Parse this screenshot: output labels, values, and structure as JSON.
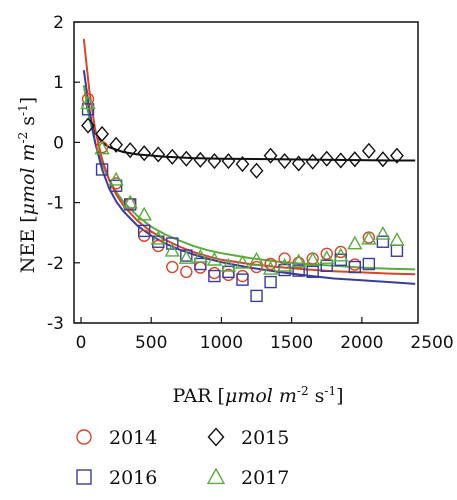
{
  "chart_data": {
    "type": "scatter",
    "title": "",
    "xlabel": {
      "main": "PAR [",
      "unit": "μmol m",
      "exp": "-2",
      "tail": " s",
      "exp2": "-1",
      "close": "]"
    },
    "ylabel": {
      "main": "NEE [",
      "unit": "μmol m",
      "exp": "-2",
      "tail": " s",
      "exp2": "-1",
      "close": "]"
    },
    "xlim": [
      -50,
      2400
    ],
    "ylim": [
      -3,
      2
    ],
    "x_ticks": [
      0,
      500,
      1000,
      1500,
      2000,
      2500
    ],
    "y_ticks": [
      -3,
      -2,
      -1,
      0,
      1,
      2
    ],
    "grid": false,
    "legend_position": "bottom",
    "colors": {
      "2014": "#d9442c",
      "2015": "#111111",
      "2016": "#3b3b9c",
      "2017": "#5aaa3c"
    },
    "series": [
      {
        "name": "2014",
        "marker": "circle",
        "points": [
          [
            50,
            0.72
          ],
          [
            150,
            -0.08
          ],
          [
            250,
            -0.68
          ],
          [
            350,
            -1.02
          ],
          [
            450,
            -1.55
          ],
          [
            550,
            -1.72
          ],
          [
            650,
            -2.07
          ],
          [
            750,
            -2.15
          ],
          [
            850,
            -2.08
          ],
          [
            950,
            -2.17
          ],
          [
            1050,
            -2.2
          ],
          [
            1150,
            -2.22
          ],
          [
            1250,
            -2.07
          ],
          [
            1350,
            -2.02
          ],
          [
            1450,
            -1.93
          ],
          [
            1550,
            -2.0
          ],
          [
            1650,
            -1.93
          ],
          [
            1750,
            -1.85
          ],
          [
            1850,
            -1.82
          ],
          [
            1950,
            -2.03
          ],
          [
            2050,
            -1.58
          ]
        ],
        "fit": [
          [
            20,
            1.72
          ],
          [
            60,
            0.85
          ],
          [
            100,
            0.22
          ],
          [
            150,
            -0.28
          ],
          [
            200,
            -0.62
          ],
          [
            250,
            -0.86
          ],
          [
            300,
            -1.04
          ],
          [
            400,
            -1.3
          ],
          [
            500,
            -1.48
          ],
          [
            600,
            -1.62
          ],
          [
            700,
            -1.73
          ],
          [
            800,
            -1.82
          ],
          [
            900,
            -1.89
          ],
          [
            1000,
            -1.95
          ],
          [
            1200,
            -2.02
          ],
          [
            1400,
            -2.07
          ],
          [
            1600,
            -2.11
          ],
          [
            1800,
            -2.14
          ],
          [
            2000,
            -2.16
          ],
          [
            2200,
            -2.18
          ],
          [
            2380,
            -2.19
          ]
        ]
      },
      {
        "name": "2015",
        "marker": "diamond",
        "points": [
          [
            50,
            0.28
          ],
          [
            150,
            0.14
          ],
          [
            250,
            -0.04
          ],
          [
            350,
            -0.13
          ],
          [
            450,
            -0.18
          ],
          [
            550,
            -0.2
          ],
          [
            650,
            -0.24
          ],
          [
            750,
            -0.27
          ],
          [
            850,
            -0.29
          ],
          [
            950,
            -0.31
          ],
          [
            1050,
            -0.31
          ],
          [
            1150,
            -0.36
          ],
          [
            1250,
            -0.47
          ],
          [
            1350,
            -0.22
          ],
          [
            1450,
            -0.31
          ],
          [
            1550,
            -0.35
          ],
          [
            1650,
            -0.32
          ],
          [
            1750,
            -0.27
          ],
          [
            1850,
            -0.3
          ],
          [
            1950,
            -0.28
          ],
          [
            2050,
            -0.14
          ],
          [
            2150,
            -0.28
          ],
          [
            2250,
            -0.22
          ]
        ],
        "fit": [
          [
            40,
            0.62
          ],
          [
            70,
            0.34
          ],
          [
            100,
            0.16
          ],
          [
            150,
            0.0
          ],
          [
            200,
            -0.08
          ],
          [
            300,
            -0.16
          ],
          [
            400,
            -0.2
          ],
          [
            600,
            -0.24
          ],
          [
            800,
            -0.26
          ],
          [
            1000,
            -0.27
          ],
          [
            1400,
            -0.28
          ],
          [
            1800,
            -0.29
          ],
          [
            2200,
            -0.3
          ],
          [
            2380,
            -0.3
          ]
        ]
      },
      {
        "name": "2016",
        "marker": "square",
        "points": [
          [
            50,
            0.55
          ],
          [
            150,
            -0.45
          ],
          [
            250,
            -0.72
          ],
          [
            350,
            -1.03
          ],
          [
            450,
            -1.47
          ],
          [
            550,
            -1.65
          ],
          [
            650,
            -1.68
          ],
          [
            750,
            -1.88
          ],
          [
            850,
            -2.02
          ],
          [
            950,
            -2.22
          ],
          [
            1050,
            -2.15
          ],
          [
            1150,
            -2.28
          ],
          [
            1250,
            -2.55
          ],
          [
            1350,
            -2.32
          ],
          [
            1450,
            -2.12
          ],
          [
            1550,
            -2.13
          ],
          [
            1650,
            -2.15
          ],
          [
            1750,
            -2.05
          ],
          [
            1850,
            -1.95
          ],
          [
            1950,
            -2.07
          ],
          [
            2050,
            -2.02
          ],
          [
            2150,
            -1.65
          ],
          [
            2250,
            -1.8
          ]
        ],
        "fit": [
          [
            20,
            1.2
          ],
          [
            60,
            0.55
          ],
          [
            100,
            0.0
          ],
          [
            150,
            -0.45
          ],
          [
            200,
            -0.76
          ],
          [
            250,
            -0.98
          ],
          [
            300,
            -1.14
          ],
          [
            400,
            -1.38
          ],
          [
            500,
            -1.55
          ],
          [
            600,
            -1.68
          ],
          [
            700,
            -1.78
          ],
          [
            800,
            -1.86
          ],
          [
            900,
            -1.93
          ],
          [
            1000,
            -1.99
          ],
          [
            1200,
            -2.08
          ],
          [
            1400,
            -2.15
          ],
          [
            1600,
            -2.21
          ],
          [
            1800,
            -2.26
          ],
          [
            2000,
            -2.29
          ],
          [
            2200,
            -2.32
          ],
          [
            2380,
            -2.35
          ]
        ]
      },
      {
        "name": "2017",
        "marker": "triangle",
        "points": [
          [
            50,
            0.65
          ],
          [
            150,
            -0.1
          ],
          [
            250,
            -0.62
          ],
          [
            350,
            -1.0
          ],
          [
            450,
            -1.2
          ],
          [
            550,
            -1.6
          ],
          [
            650,
            -1.8
          ],
          [
            750,
            -1.92
          ],
          [
            850,
            -1.9
          ],
          [
            950,
            -1.95
          ],
          [
            1050,
            -2.05
          ],
          [
            1150,
            -2.0
          ],
          [
            1250,
            -1.95
          ],
          [
            1350,
            -2.1
          ],
          [
            1450,
            -2.05
          ],
          [
            1550,
            -1.98
          ],
          [
            1650,
            -1.95
          ],
          [
            1750,
            -1.92
          ],
          [
            1850,
            -1.88
          ],
          [
            1950,
            -1.68
          ],
          [
            2050,
            -1.6
          ],
          [
            2150,
            -1.52
          ],
          [
            2250,
            -1.62
          ]
        ],
        "fit": [
          [
            20,
            0.95
          ],
          [
            60,
            0.4
          ],
          [
            100,
            0.0
          ],
          [
            150,
            -0.36
          ],
          [
            200,
            -0.62
          ],
          [
            250,
            -0.82
          ],
          [
            300,
            -0.98
          ],
          [
            400,
            -1.22
          ],
          [
            500,
            -1.4
          ],
          [
            600,
            -1.53
          ],
          [
            700,
            -1.63
          ],
          [
            800,
            -1.72
          ],
          [
            900,
            -1.79
          ],
          [
            1000,
            -1.84
          ],
          [
            1200,
            -1.92
          ],
          [
            1400,
            -1.98
          ],
          [
            1600,
            -2.02
          ],
          [
            1800,
            -2.05
          ],
          [
            2000,
            -2.08
          ],
          [
            2200,
            -2.1
          ],
          [
            2380,
            -2.11
          ]
        ]
      }
    ]
  }
}
